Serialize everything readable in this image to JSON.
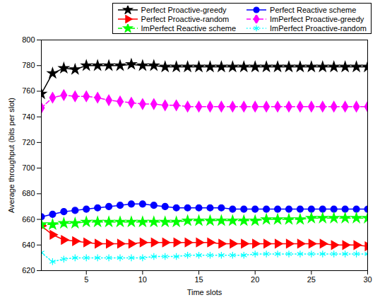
{
  "chart_data": {
    "type": "line",
    "x_label": "Time slots",
    "y_label": "Average throughput (bits per slot)",
    "x": [
      1,
      2,
      3,
      4,
      5,
      6,
      7,
      8,
      9,
      10,
      11,
      12,
      13,
      14,
      15,
      16,
      17,
      18,
      19,
      20,
      21,
      22,
      23,
      24,
      25,
      26,
      27,
      28,
      29,
      30
    ],
    "xlim": [
      1,
      30
    ],
    "xticks": [
      5,
      10,
      15,
      20,
      25,
      30
    ],
    "ylim": [
      620,
      800
    ],
    "yticks": [
      620,
      640,
      660,
      680,
      700,
      720,
      740,
      760,
      780,
      800
    ],
    "grid": false,
    "legend": "upper right",
    "series": [
      {
        "name": "Perfect Proactive-greedy",
        "color": "#000000",
        "marker": "pentagram",
        "line_style": "solid",
        "values": [
          758,
          774,
          778,
          777,
          780,
          780,
          780,
          780,
          781,
          780,
          780,
          779,
          779,
          779,
          779,
          779,
          779,
          779,
          779,
          779,
          779,
          779,
          779,
          779,
          779,
          779,
          779,
          779,
          779,
          779
        ]
      },
      {
        "name": "Perfect Reactive scheme",
        "color": "#0000ff",
        "marker": "circle",
        "line_style": "solid",
        "values": [
          662,
          664,
          666,
          667,
          668,
          669,
          670,
          671,
          672,
          672,
          671,
          670,
          669,
          669,
          669,
          669,
          669,
          668,
          668,
          668,
          668,
          668,
          668,
          668,
          668,
          668,
          668,
          668,
          668,
          668
        ]
      },
      {
        "name": "Perfect Proactive-random",
        "color": "#ff0000",
        "marker": "triangle-right",
        "line_style": "solid",
        "values": [
          655,
          648,
          644,
          643,
          642,
          641,
          641,
          641,
          641,
          642,
          642,
          642,
          642,
          642,
          642,
          642,
          641,
          641,
          641,
          641,
          641,
          641,
          641,
          641,
          641,
          641,
          640,
          640,
          640,
          639
        ]
      },
      {
        "name": "ImPerfect Proactive-greedy",
        "color": "#ff00ff",
        "marker": "diamond",
        "line_style": "dashed",
        "values": [
          747,
          755,
          757,
          756,
          756,
          755,
          753,
          752,
          751,
          750,
          750,
          749,
          749,
          748,
          748,
          748,
          748,
          748,
          748,
          748,
          748,
          748,
          748,
          748,
          748,
          748,
          748,
          748,
          748,
          748
        ]
      },
      {
        "name": "ImPerfect Reactive scheme",
        "color": "#00ff00",
        "marker": "pentagram",
        "line_style": "dashed",
        "values": [
          656,
          656,
          657,
          657,
          658,
          658,
          658,
          658,
          658,
          658,
          658,
          658,
          658,
          659,
          659,
          659,
          659,
          659,
          659,
          659,
          660,
          660,
          660,
          660,
          661,
          661,
          661,
          661,
          661,
          661
        ]
      },
      {
        "name": "ImPerfect Proactive-random",
        "color": "#00ffff",
        "marker": "asterisk",
        "line_style": "dotted",
        "values": [
          634,
          627,
          629,
          630,
          630,
          630,
          630,
          630,
          630,
          630,
          631,
          631,
          631,
          632,
          632,
          632,
          632,
          632,
          632,
          633,
          633,
          633,
          633,
          633,
          633,
          633,
          633,
          633,
          633,
          633
        ]
      }
    ]
  }
}
